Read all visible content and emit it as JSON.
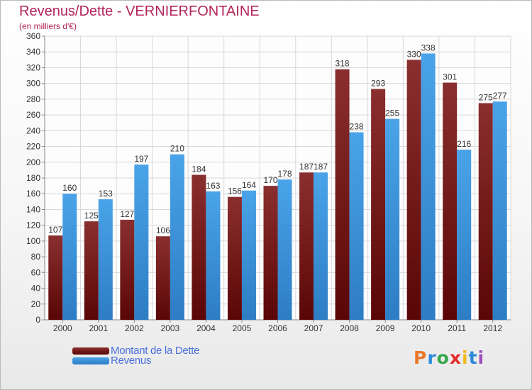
{
  "title": "Revenus/Dette - VERNIERFONTAINE",
  "subtitle": "(en milliers d'€)",
  "legend": [
    {
      "label": "Montant de la Dette",
      "color": "#6b0e0e"
    },
    {
      "label": "Revenus",
      "color": "#3b8fd6"
    }
  ],
  "logo": {
    "text": "Proxiti"
  },
  "chart_data": {
    "type": "bar",
    "title": "Revenus/Dette - VERNIERFONTAINE",
    "ylabel": "(en milliers d'€)",
    "categories": [
      "2000",
      "2001",
      "2002",
      "2003",
      "2004",
      "2005",
      "2006",
      "2007",
      "2008",
      "2009",
      "2010",
      "2011",
      "2012"
    ],
    "series": [
      {
        "name": "Montant de la Dette",
        "color": "#7a1e1e",
        "values": [
          107,
          125,
          127,
          106,
          184,
          156,
          170,
          187,
          318,
          293,
          330,
          301,
          275
        ]
      },
      {
        "name": "Revenus",
        "color": "#3b8fd6",
        "values": [
          160,
          153,
          197,
          210,
          163,
          164,
          178,
          187,
          238,
          255,
          338,
          216,
          277
        ]
      }
    ],
    "ylim": [
      0,
      360
    ],
    "ytick_step": 20,
    "grid": true,
    "legend_position": "bottom-left"
  }
}
